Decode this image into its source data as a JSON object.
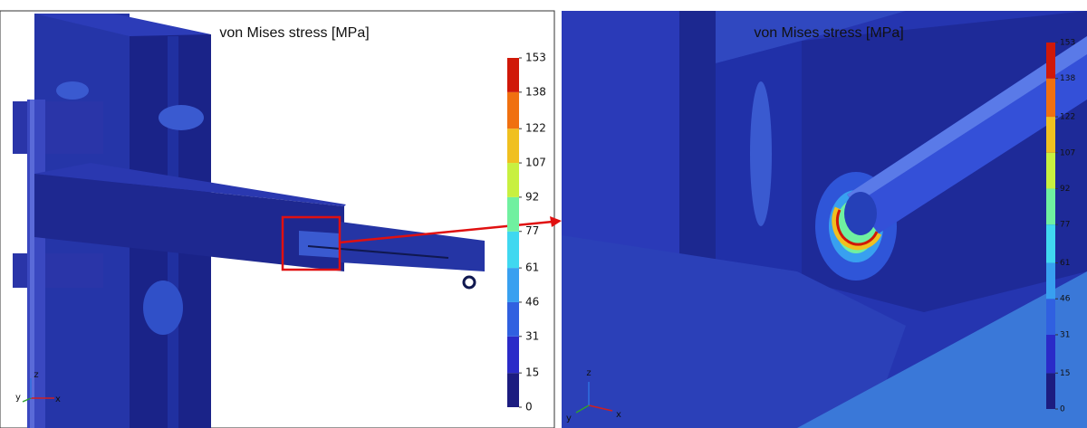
{
  "panels": [
    {
      "title": "von Mises stress [MPa]",
      "colorbar": {
        "ticks": [
          0,
          15,
          31,
          46,
          61,
          77,
          92,
          107,
          122,
          138,
          153
        ],
        "colors": [
          "#1c1c80",
          "#2a2ac8",
          "#3060e0",
          "#38a0f0",
          "#40d8f0",
          "#70f0a0",
          "#c8f040",
          "#f0c020",
          "#f07010",
          "#d01808"
        ]
      },
      "axes": [
        "z",
        "y",
        "x"
      ]
    },
    {
      "title": "von Mises stress [MPa]",
      "colorbar": {
        "ticks": [
          0,
          15,
          31,
          46,
          61,
          77,
          92,
          107,
          122,
          138,
          153
        ],
        "colors": [
          "#1c1c80",
          "#2a2ac8",
          "#3060e0",
          "#38a0f0",
          "#40d8f0",
          "#70f0a0",
          "#c8f040",
          "#f0c020",
          "#f07010",
          "#d01808"
        ]
      },
      "axes": [
        "z",
        "y",
        "x"
      ]
    }
  ]
}
